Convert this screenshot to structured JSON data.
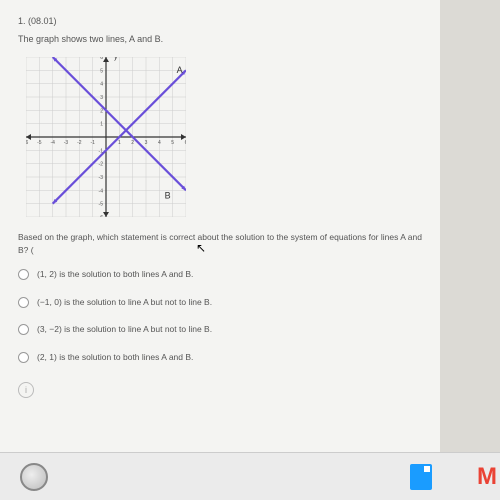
{
  "question": {
    "number": "1. (08.01)",
    "prompt": "The graph shows two lines, A and B.",
    "followup": "Based on the graph, which statement is correct about the solution to the system of equations for lines A and B? ("
  },
  "options": [
    "(1, 2) is the solution to both lines A and B.",
    "(−1, 0) is the solution to line A but not to line B.",
    "(3, −2) is the solution to line A but not to line B.",
    "(2, 1) is the solution to both lines A and B."
  ],
  "help_char": "i",
  "graph": {
    "type": "line",
    "background_color": "#f4f4f2",
    "grid_color": "#cccccc",
    "axis_color": "#333333",
    "xlim": [
      -6,
      6
    ],
    "ylim": [
      -6,
      6
    ],
    "tick_step": 1,
    "x_ticks_labeled": [
      -6,
      -5,
      -4,
      -3,
      -2,
      -1,
      1,
      2,
      3,
      4,
      5,
      6
    ],
    "y_ticks_labeled": [
      -6,
      -5,
      -4,
      -3,
      -2,
      -1,
      1,
      2,
      3,
      4,
      5,
      6
    ],
    "tick_fontsize": 5,
    "tick_color": "#555555",
    "lines": [
      {
        "label": "A",
        "label_pos": [
          5.3,
          4.8
        ],
        "color": "#6a4fd9",
        "width": 2.2,
        "points": [
          [
            -4,
            -5
          ],
          [
            6,
            5
          ]
        ]
      },
      {
        "label": "B",
        "label_pos": [
          4.4,
          -4.6
        ],
        "color": "#6a4fd9",
        "width": 2.2,
        "points": [
          [
            -4,
            6
          ],
          [
            6,
            -4
          ]
        ]
      }
    ],
    "label_fontsize": 9,
    "label_color": "#333333",
    "y_axis_label": "y",
    "y_axis_label_pos": [
      0.6,
      6.3
    ]
  },
  "taskbar": {
    "bg": "#ebebeb",
    "icons": [
      "cortana-circle",
      "doc-icon",
      "m-icon"
    ]
  },
  "cursor_glyph": "↖"
}
